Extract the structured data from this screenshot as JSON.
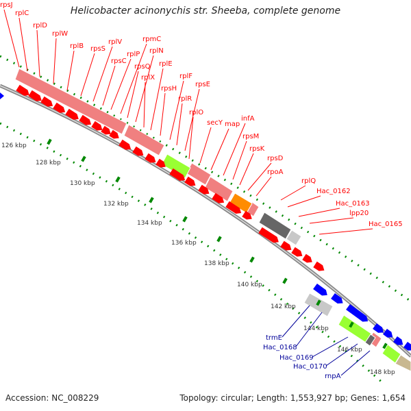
{
  "title": "Helicobacter acinonychis str. Sheeba, complete genome",
  "accession": "Accession: NC_008229",
  "summary": "Topology: circular; Length: 1,553,927 bp; Genes: 1,654",
  "colors": {
    "red_gene": "#ff0000",
    "red_label": "#ff0000",
    "blue_gene": "#0000ff",
    "blue_label": "#000099",
    "pink_band": "#f08080",
    "green_band": "#99ff33",
    "orange_band": "#ff8c00",
    "gray_dark": "#666666",
    "gray_light": "#c8c8c8",
    "tick_green": "#008800",
    "axis_gray": "#888888"
  },
  "scale_labels": [
    "126 kbp",
    "128 kbp",
    "130 kbp",
    "132 kbp",
    "134 kbp",
    "136 kbp",
    "138 kbp",
    "140 kbp",
    "142 kbp",
    "144 kbp",
    "146 kbp",
    "148 kbp"
  ],
  "red_gene_labels": [
    "rpsJ",
    "rplC",
    "rplD",
    "rplW",
    "rplB",
    "rpsS",
    "rplV",
    "rpsC",
    "rplP",
    "rpmC",
    "rpsQ",
    "rplN",
    "rplX",
    "rplE",
    "rpsH",
    "rplF",
    "rplR",
    "rpsE",
    "rplO",
    "secY",
    "map",
    "infA",
    "rpsM",
    "rpsK",
    "rpsD",
    "rpoA",
    "rplQ",
    "Hac_0162",
    "Hac_0163",
    "lpp20",
    "Hac_0165"
  ],
  "blue_gene_labels": [
    "trmE",
    "Hac_0168",
    "Hac_0169",
    "Hac_0170",
    "rnpA"
  ]
}
